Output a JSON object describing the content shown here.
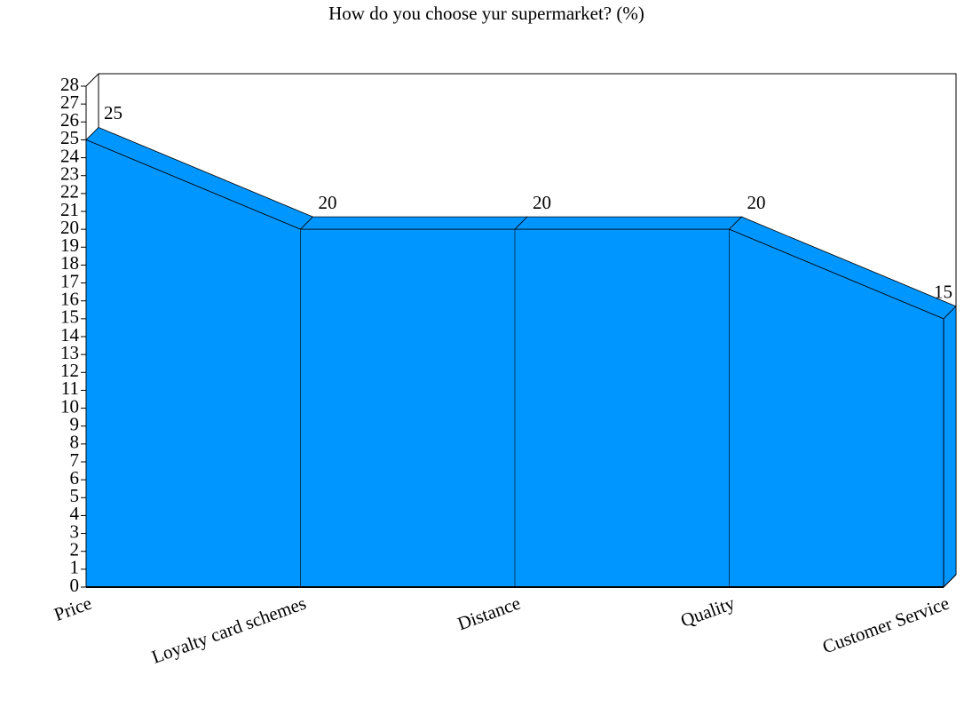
{
  "chart_data": {
    "type": "area",
    "title": "How do you choose yur supermarket? (%)",
    "categories": [
      "Price",
      "Loyalty card schemes",
      "Distance",
      "Quality",
      "Customer Service"
    ],
    "values": [
      25,
      20,
      20,
      20,
      15
    ],
    "color": "#0096ff",
    "ylim": [
      0,
      28
    ],
    "yticks": [
      0,
      1,
      2,
      3,
      4,
      5,
      6,
      7,
      8,
      9,
      10,
      11,
      12,
      13,
      14,
      15,
      16,
      17,
      18,
      19,
      20,
      21,
      22,
      23,
      24,
      25,
      26,
      27,
      28
    ]
  }
}
